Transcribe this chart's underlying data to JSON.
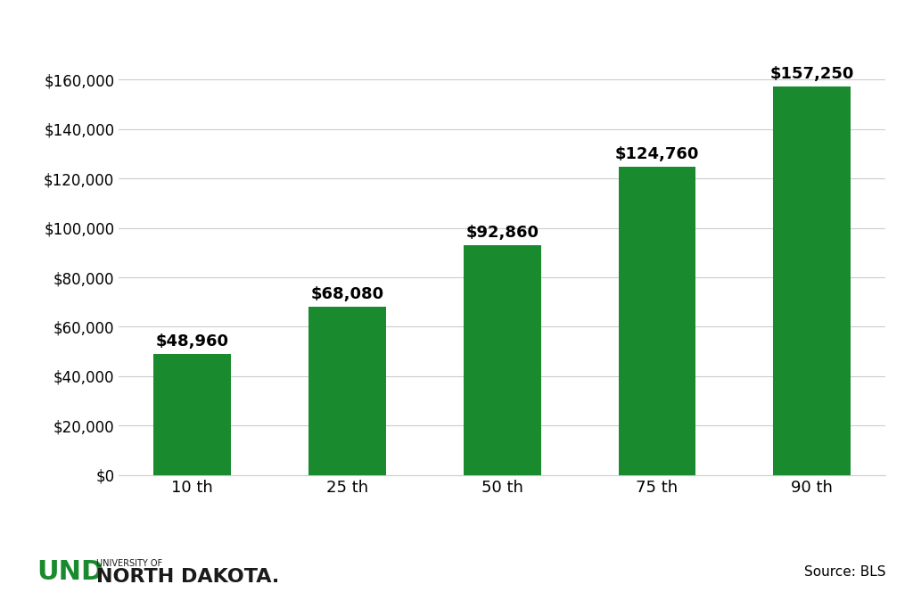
{
  "categories": [
    "10 th",
    "25 th",
    "50 th",
    "75 th",
    "90 th"
  ],
  "values": [
    48960,
    68080,
    92860,
    124760,
    157250
  ],
  "labels": [
    "$48,960",
    "$68,080",
    "$92,860",
    "$124,760",
    "$157,250"
  ],
  "bar_color": "#1a8a2e",
  "background_color": "#ffffff",
  "ylim": [
    0,
    175000
  ],
  "yticks": [
    0,
    20000,
    40000,
    60000,
    80000,
    100000,
    120000,
    140000,
    160000
  ],
  "ytick_labels": [
    "$0",
    "$20,000",
    "$40,000",
    "$60,000",
    "$80,000",
    "$100,000",
    "$120,000",
    "$140,000",
    "$160,000"
  ],
  "grid_color": "#cccccc",
  "label_fontsize": 13,
  "tick_fontsize": 12,
  "source_text": "Source: BLS",
  "source_fontsize": 11,
  "und_text": "UND",
  "university_of_text": "UNIVERSITY OF",
  "north_dakota_text": "NORTH DAKOTA.",
  "und_color": "#1a8a2e",
  "text_color": "#1a1a1a"
}
